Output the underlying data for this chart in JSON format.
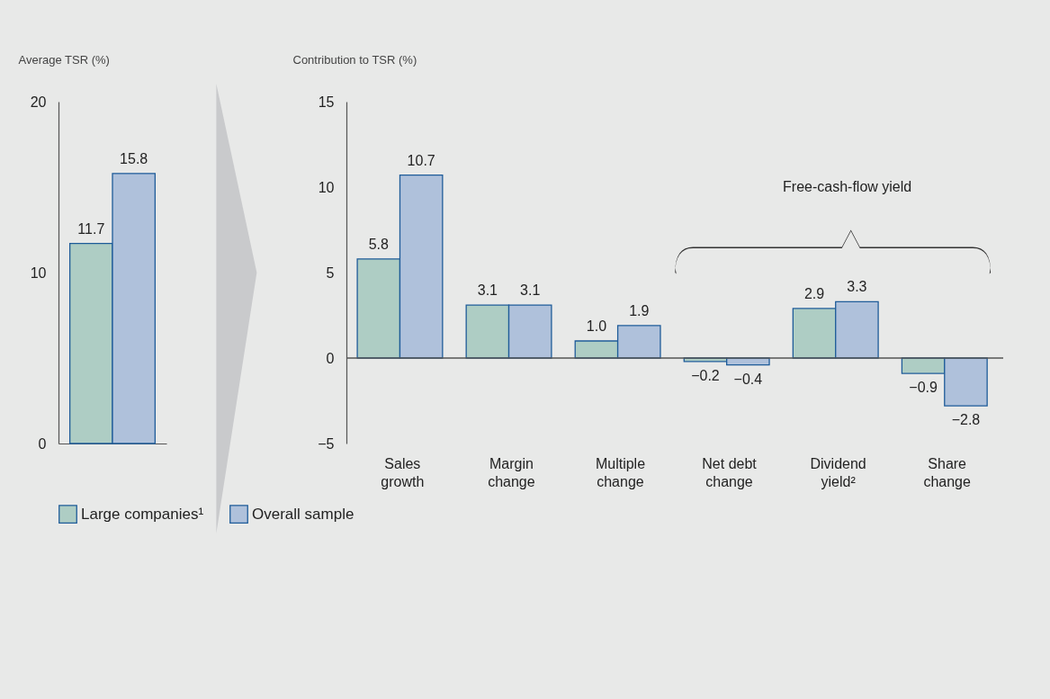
{
  "chart_data": [
    {
      "type": "bar",
      "ylabel": "Average TSR (%)",
      "categories": [
        null
      ],
      "series": [
        {
          "name": "Large companies¹",
          "color": "#aecdc4",
          "values": [
            11.7
          ],
          "value_labels": [
            "11.7"
          ]
        },
        {
          "name": "Overall sample",
          "color": "#afc1db",
          "values": [
            15.8
          ],
          "value_labels": [
            "15.8"
          ]
        }
      ],
      "ylim": [
        0,
        20
      ],
      "yticks": [
        0,
        10,
        20
      ],
      "tick_labels": "y",
      "legend": "bottom"
    },
    {
      "type": "bar",
      "ylabel": "Contribution to TSR (%)",
      "categories": [
        "Sales growth",
        "Margin change",
        "Multiple change",
        "Net debt change",
        "Dividend yield²",
        "Share change"
      ],
      "series": [
        {
          "name": "Large companies¹",
          "color": "#aecdc4",
          "values": [
            5.8,
            3.1,
            1.0,
            -0.2,
            2.9,
            -0.9
          ],
          "value_labels": [
            "5.8",
            "3.1",
            "1.0",
            "−0.2",
            "2.9",
            "−0.9"
          ]
        },
        {
          "name": "Overall sample",
          "color": "#afc1db",
          "values": [
            10.7,
            3.1,
            1.9,
            -0.4,
            3.3,
            -2.8
          ],
          "value_labels": [
            "10.7",
            "3.1",
            "1.9",
            "−0.4",
            "3.3",
            "−2.8"
          ]
        }
      ],
      "ylim": [
        -5,
        15
      ],
      "yticks": [
        -5,
        0,
        5,
        10,
        15
      ],
      "ref_lines": [
        {
          "axis": "y",
          "value": 0,
          "color": "#555555"
        }
      ],
      "annotations": [
        "Free-cash-flow yield"
      ]
    }
  ]
}
